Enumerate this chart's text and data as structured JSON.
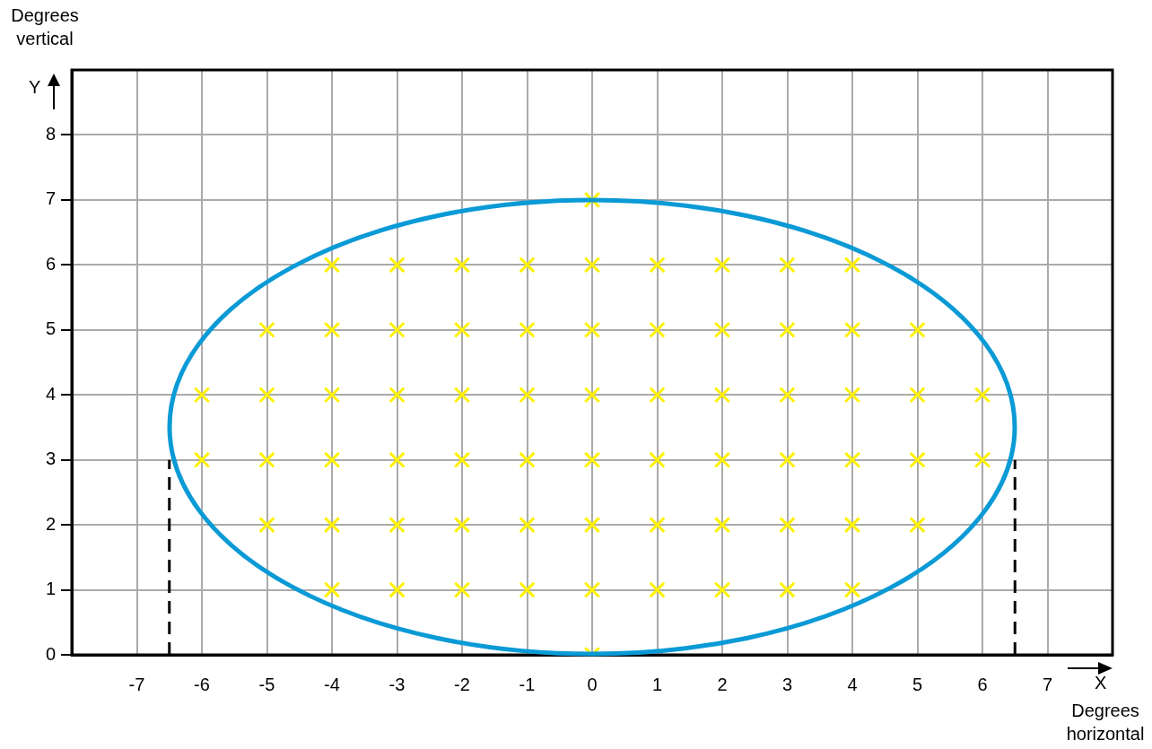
{
  "chart_data": {
    "type": "scatter",
    "xlabel": "Degrees horizontal",
    "ylabel": "Degrees vertical",
    "annotations": [
      "Y",
      "X"
    ],
    "xlim": [
      -8,
      8
    ],
    "xticks": [
      -7,
      -6,
      -5,
      -4,
      -3,
      -2,
      -1,
      0,
      1,
      2,
      3,
      4,
      5,
      6,
      7
    ],
    "ylim": [
      0,
      9
    ],
    "yticks": [
      0,
      1,
      2,
      3,
      4,
      5,
      6,
      7,
      8
    ],
    "grid": true,
    "legend": false,
    "series": [
      {
        "type": "scatter",
        "color": "#fff200",
        "marker": "cross",
        "x": [
          0,
          -4,
          -3,
          -2,
          -1,
          0,
          1,
          2,
          3,
          4,
          -5,
          -4,
          -3,
          -2,
          -1,
          0,
          1,
          2,
          3,
          4,
          5,
          -6,
          -5,
          -4,
          -3,
          -2,
          -1,
          0,
          1,
          2,
          3,
          4,
          5,
          6,
          -6,
          -5,
          -4,
          -3,
          -2,
          -1,
          0,
          1,
          2,
          3,
          4,
          5,
          6,
          -5,
          -4,
          -3,
          -2,
          -1,
          0,
          1,
          2,
          3,
          4,
          5,
          -4,
          -3,
          -2,
          -1,
          0,
          1,
          2,
          3,
          4,
          0
        ],
        "values": [
          7,
          6,
          6,
          6,
          6,
          6,
          6,
          6,
          6,
          6,
          5,
          5,
          5,
          5,
          5,
          5,
          5,
          5,
          5,
          5,
          5,
          4,
          4,
          4,
          4,
          4,
          4,
          4,
          4,
          4,
          4,
          4,
          4,
          4,
          3,
          3,
          3,
          3,
          3,
          3,
          3,
          3,
          3,
          3,
          3,
          3,
          3,
          2,
          2,
          2,
          2,
          2,
          2,
          2,
          2,
          2,
          2,
          2,
          1,
          1,
          1,
          1,
          1,
          1,
          1,
          1,
          1,
          0
        ]
      },
      {
        "type": "line",
        "color": "#000000",
        "marker": "none",
        "line_style": "dashed",
        "x": [
          -6.5,
          -6.5
        ],
        "values": [
          0,
          3
        ]
      },
      {
        "type": "line",
        "color": "#000000",
        "marker": "none",
        "line_style": "dashed",
        "x": [
          6.5,
          6.5
        ],
        "values": [
          0,
          3
        ]
      }
    ]
  }
}
